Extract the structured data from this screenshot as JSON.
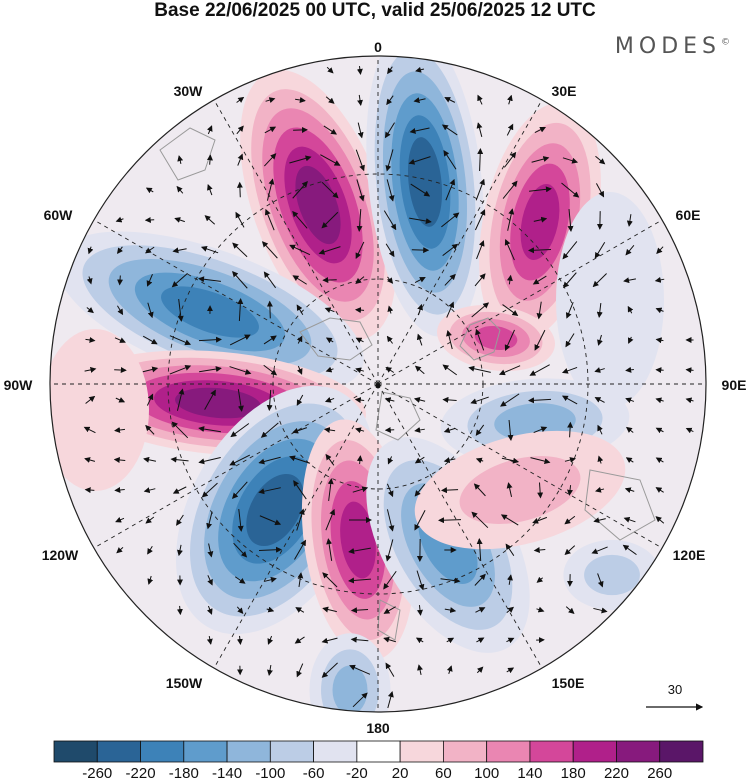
{
  "title": "Base 22/06/2025 00 UTC, valid 25/06/2025 12 UTC",
  "brand": {
    "name": "MODES",
    "mark": "©"
  },
  "longitude_labels": [
    "0",
    "30E",
    "60E",
    "90E",
    "120E",
    "150E",
    "180",
    "150W",
    "120W",
    "90W",
    "60W",
    "30W"
  ],
  "vector_scale": {
    "label": "30"
  },
  "colorbar": {
    "ticks": [
      "-260",
      "-220",
      "-180",
      "-140",
      "-100",
      "-60",
      "-20",
      "20",
      "60",
      "100",
      "140",
      "180",
      "220",
      "260"
    ],
    "colors": [
      "#1f4a6b",
      "#2a6496",
      "#3d82b8",
      "#5f9ccc",
      "#8fb6db",
      "#bccde6",
      "#e1e3f0",
      "#ffffff",
      "#f7d7dc",
      "#f2b3c6",
      "#ea86b2",
      "#d4479a",
      "#b0208a",
      "#871a7d",
      "#5a1668"
    ]
  },
  "colors": {
    "land": "#9a9a9a",
    "grid": "#222222",
    "arrow": "#111111"
  }
}
